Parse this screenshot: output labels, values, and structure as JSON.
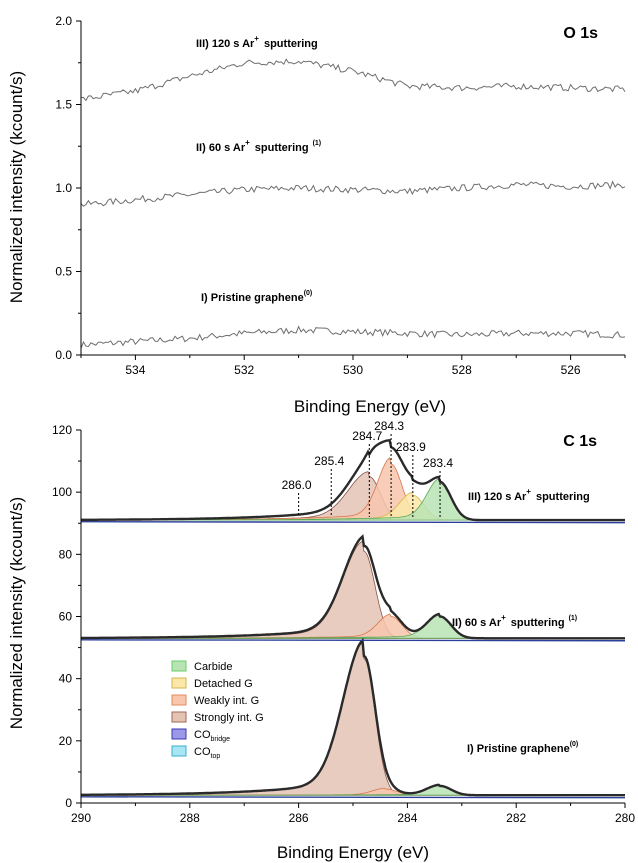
{
  "chart_data": [
    {
      "type": "line",
      "title": "O 1s",
      "xlabel": "Binding Energy (eV)",
      "ylabel": "Normalized intensity (kcount/s)",
      "xlim": [
        535,
        525
      ],
      "ylim": [
        0.0,
        2.0
      ],
      "x_reversed": true,
      "xticks": [
        "534",
        "532",
        "530",
        "528",
        "526"
      ],
      "yticks": [
        "0.0",
        "0.5",
        "1.0",
        "1.5",
        "2.0"
      ],
      "series": [
        {
          "name": "I) Pristine graphene",
          "label_sup": "(0)",
          "x": [
            535,
            534,
            533,
            532,
            531,
            530,
            529,
            528,
            527,
            526,
            525
          ],
          "y": [
            0.06,
            0.08,
            0.1,
            0.13,
            0.15,
            0.14,
            0.13,
            0.12,
            0.13,
            0.13,
            0.12
          ]
        },
        {
          "name": "II) 60 s Ar",
          "label_sup": "+",
          "label_suffix": "sputtering",
          "label_sup2": "(1)",
          "x": [
            535,
            534,
            533,
            532,
            531,
            530,
            529,
            528,
            527,
            526,
            525
          ],
          "y": [
            0.9,
            0.93,
            0.96,
            0.99,
            1.0,
            0.99,
            0.98,
            1.0,
            1.02,
            1.01,
            1.02
          ]
        },
        {
          "name": "III) 120 s Ar",
          "label_sup": "+",
          "label_suffix": "sputtering",
          "x": [
            535,
            534,
            533,
            532,
            531,
            530,
            529,
            528,
            527,
            526,
            525
          ],
          "y": [
            1.53,
            1.58,
            1.67,
            1.75,
            1.76,
            1.7,
            1.61,
            1.6,
            1.61,
            1.6,
            1.59
          ]
        }
      ]
    },
    {
      "type": "area",
      "title": "C 1s",
      "xlabel": "Binding Energy (eV)",
      "ylabel": "Normalized intensity (kcount/s)",
      "xlim": [
        290,
        280
      ],
      "ylim": [
        0,
        120
      ],
      "x_reversed": true,
      "xticks": [
        "290",
        "288",
        "286",
        "284",
        "282",
        "280"
      ],
      "yticks": [
        "0",
        "20",
        "40",
        "60",
        "80",
        "100",
        "120"
      ],
      "peak_labels": [
        "286.0",
        "285.4",
        "284.7",
        "284.3",
        "283.9",
        "283.4"
      ],
      "peak_positions": [
        286.0,
        285.4,
        284.7,
        284.3,
        283.9,
        283.4
      ],
      "legend": [
        {
          "label": "Carbide",
          "color": "#b9e3b3"
        },
        {
          "label": "Detached G",
          "color": "#fbe7a8"
        },
        {
          "label": "Weakly int. G",
          "color": "#f7c6ad"
        },
        {
          "label": "Strongly int. G",
          "color": "#e3c3b4"
        },
        {
          "label": "CO",
          "sub": "bridge",
          "color": "#9c98e8"
        },
        {
          "label": "CO",
          "sub": "top",
          "color": "#a8e6f4"
        }
      ],
      "legend_position": "center-left",
      "spectra": [
        {
          "name": "I) Pristine graphene",
          "label_sup": "(0)",
          "baseline": 2.5,
          "envelope_peak": 46,
          "components": [
            {
              "name": "Strongly int. G",
              "center": 284.8,
              "height": 44
            },
            {
              "name": "Weakly int. G",
              "center": 284.4,
              "height": 2
            },
            {
              "name": "Carbide",
              "center": 283.4,
              "height": 3
            }
          ]
        },
        {
          "name": "II) 60 s Ar",
          "label_sup": "+",
          "label_suffix": "sputtering",
          "label_sup2": "(1)",
          "baseline": 53,
          "envelope_peak": 84,
          "components": [
            {
              "name": "Strongly int. G",
              "center": 284.8,
              "height": 28
            },
            {
              "name": "Weakly int. G",
              "center": 284.3,
              "height": 7
            },
            {
              "name": "Carbide",
              "center": 283.4,
              "height": 7
            }
          ]
        },
        {
          "name": "III) 120 s Ar",
          "label_sup": "+",
          "label_suffix": "sputtering",
          "baseline": 91,
          "envelope_peak": 112,
          "components": [
            {
              "name": "Strongly int. G",
              "center": 284.7,
              "height": 14
            },
            {
              "name": "Weakly int. G",
              "center": 284.3,
              "height": 18
            },
            {
              "name": "Detached G",
              "center": 283.9,
              "height": 8
            },
            {
              "name": "Carbide",
              "center": 283.4,
              "height": 12
            }
          ]
        }
      ]
    }
  ],
  "colors": {
    "axis": "#000000",
    "trace": "#6e6e6e",
    "envelope": "#2a2a2a",
    "baseline": "#2a3f9a"
  }
}
